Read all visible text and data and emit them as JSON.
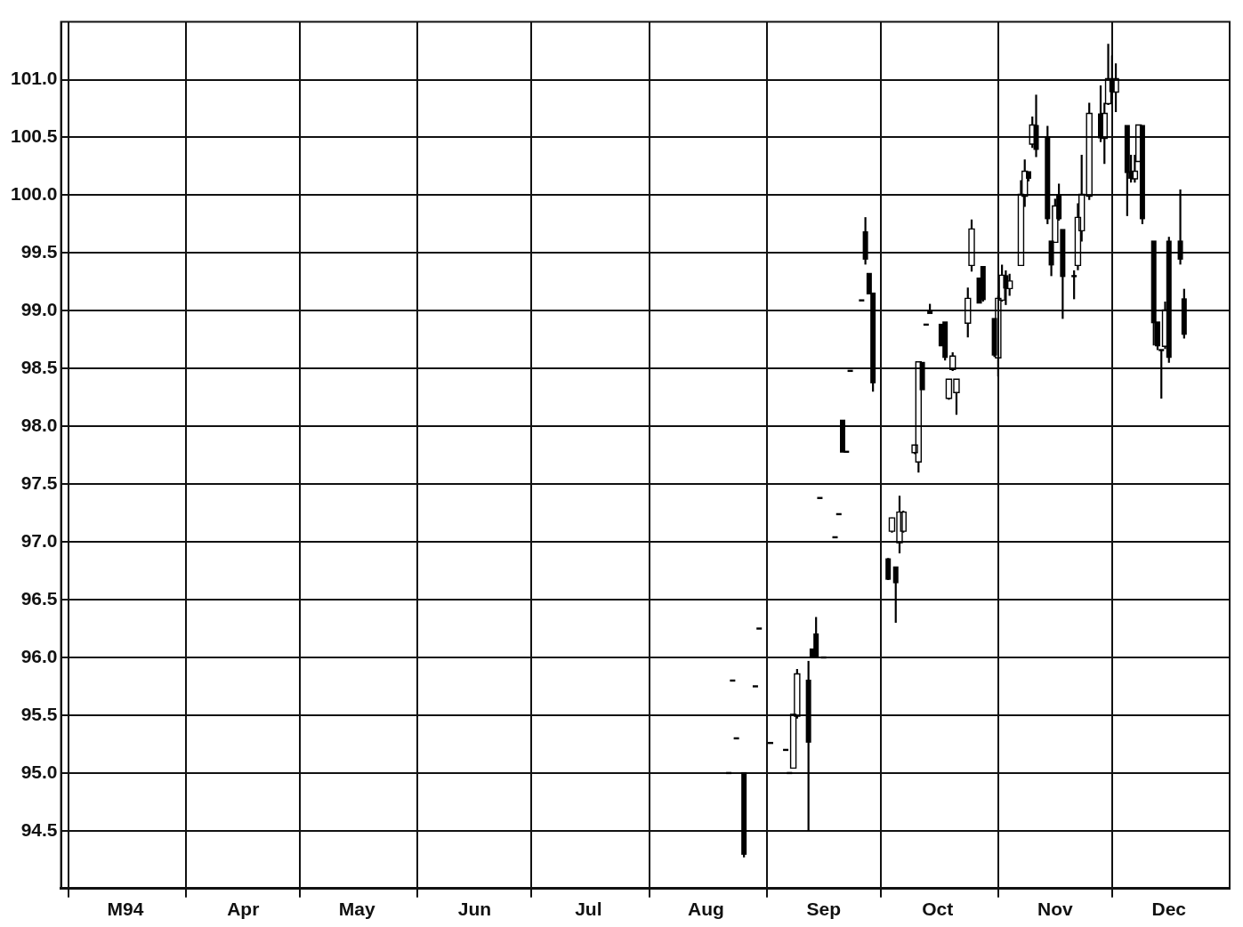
{
  "chart_data": {
    "type": "candlestick",
    "color": "#000000",
    "grid": true,
    "xlim": [
      "1994-02-27",
      "1995-01-01"
    ],
    "xticks": [
      {
        "value": "1994-03-01",
        "label": null
      },
      {
        "value": "1994-03-16",
        "label": "M94"
      },
      {
        "value": "1994-04-01",
        "label": null
      },
      {
        "value": "1994-04-16",
        "label": "Apr"
      },
      {
        "value": "1994-05-01",
        "label": null
      },
      {
        "value": "1994-05-16",
        "label": "May"
      },
      {
        "value": "1994-06-01",
        "label": null
      },
      {
        "value": "1994-06-16",
        "label": "Jun"
      },
      {
        "value": "1994-07-01",
        "label": null
      },
      {
        "value": "1994-07-16",
        "label": "Jul"
      },
      {
        "value": "1994-08-01",
        "label": null
      },
      {
        "value": "1994-08-16",
        "label": "Aug"
      },
      {
        "value": "1994-09-01",
        "label": null
      },
      {
        "value": "1994-09-16",
        "label": "Sep"
      },
      {
        "value": "1994-10-01",
        "label": null
      },
      {
        "value": "1994-10-16",
        "label": "Oct"
      },
      {
        "value": "1994-11-01",
        "label": null
      },
      {
        "value": "1994-11-16",
        "label": "Nov"
      },
      {
        "value": "1994-12-01",
        "label": null
      },
      {
        "value": "1994-12-16",
        "label": "Dec"
      }
    ],
    "ylim": [
      94.0,
      101.5
    ],
    "yticks": [
      94.5,
      {
        "value": 95,
        "label": "95.0"
      },
      95.5,
      {
        "value": 96,
        "label": "96.0"
      },
      96.5,
      {
        "value": 97,
        "label": "97.0"
      },
      97.5,
      {
        "value": 98,
        "label": "98.0"
      },
      98.5,
      {
        "value": 99,
        "label": "99.0"
      },
      99.5,
      {
        "value": 100,
        "label": "100.0"
      },
      100.5,
      {
        "value": 101,
        "label": "101.0"
      }
    ],
    "x": [
      "1994-08-22",
      "1994-08-23",
      "1994-08-24",
      "1994-08-26",
      "1994-08-29",
      "1994-08-30",
      "1994-09-02",
      "1994-09-06",
      "1994-09-07",
      "1994-09-08",
      "1994-09-09",
      "1994-09-12",
      "1994-09-13",
      "1994-09-14",
      "1994-09-15",
      "1994-09-16",
      "1994-09-19",
      "1994-09-20",
      "1994-09-21",
      "1994-09-22",
      "1994-09-23",
      "1994-09-26",
      "1994-09-27",
      "1994-09-28",
      "1994-09-29",
      "1994-10-03",
      "1994-10-04",
      "1994-10-05",
      "1994-10-06",
      "1994-10-07",
      "1994-10-10",
      "1994-10-11",
      "1994-10-12",
      "1994-10-13",
      "1994-10-14",
      "1994-10-17",
      "1994-10-18",
      "1994-10-19",
      "1994-10-20",
      "1994-10-21",
      "1994-10-24",
      "1994-10-25",
      "1994-10-27",
      "1994-10-28",
      "1994-10-31",
      "1994-11-01",
      "1994-11-02",
      "1994-11-03",
      "1994-11-04",
      "1994-11-07",
      "1994-11-08",
      "1994-11-09",
      "1994-11-10",
      "1994-11-11",
      "1994-11-14",
      "1994-11-15",
      "1994-11-16",
      "1994-11-17",
      "1994-11-18",
      "1994-11-21",
      "1994-11-22",
      "1994-11-23",
      "1994-11-25",
      "1994-11-28",
      "1994-11-29",
      "1994-11-30",
      "1994-12-01",
      "1994-12-02",
      "1994-12-05",
      "1994-12-06",
      "1994-12-07",
      "1994-12-08",
      "1994-12-09",
      "1994-12-12",
      "1994-12-13",
      "1994-12-14",
      "1994-12-15",
      "1994-12-16",
      "1994-12-19",
      "1994-12-20"
    ],
    "ohlc": [
      [
        95.0,
        95.0,
        95.0,
        95.0
      ],
      [
        95.8,
        95.8,
        95.8,
        95.8
      ],
      [
        95.3,
        95.3,
        95.3,
        95.3
      ],
      [
        95.0,
        95.0,
        94.27,
        94.3
      ],
      [
        95.75,
        95.75,
        95.75,
        95.75
      ],
      [
        96.25,
        96.25,
        96.25,
        96.25
      ],
      [
        95.26,
        95.26,
        95.26,
        95.26
      ],
      [
        95.2,
        95.2,
        95.2,
        95.2
      ],
      [
        95.0,
        95.0,
        95.0,
        95.0
      ],
      [
        95.05,
        95.51,
        95.05,
        95.5
      ],
      [
        95.5,
        95.9,
        95.47,
        95.85
      ],
      [
        95.8,
        95.97,
        94.5,
        95.27
      ],
      [
        96.07,
        96.07,
        96.0,
        96.0
      ],
      [
        96.2,
        96.35,
        96.0,
        96.0
      ],
      [
        97.38,
        97.38,
        97.38,
        97.38
      ],
      [
        96.0,
        96.0,
        96.0,
        96.0
      ],
      [
        97.04,
        97.04,
        97.04,
        97.04
      ],
      [
        97.24,
        97.24,
        97.24,
        97.24
      ],
      [
        98.05,
        98.05,
        97.78,
        97.78
      ],
      [
        97.78,
        97.78,
        97.78,
        97.78
      ],
      [
        98.48,
        98.48,
        98.48,
        98.48
      ],
      [
        99.09,
        99.09,
        99.09,
        99.09
      ],
      [
        99.68,
        99.81,
        99.4,
        99.45
      ],
      [
        99.32,
        99.32,
        99.15,
        99.15
      ],
      [
        99.15,
        99.15,
        98.3,
        98.38
      ],
      [
        96.85,
        96.86,
        96.67,
        96.68
      ],
      [
        97.1,
        97.21,
        97.08,
        97.2
      ],
      [
        96.78,
        96.78,
        96.3,
        96.65
      ],
      [
        97.0,
        97.4,
        96.9,
        97.25
      ],
      [
        97.1,
        97.27,
        97.08,
        97.25
      ],
      [
        97.78,
        97.83,
        97.76,
        97.83
      ],
      [
        97.7,
        98.55,
        97.6,
        98.55
      ],
      [
        98.55,
        98.55,
        98.32,
        98.32
      ],
      [
        98.88,
        98.88,
        98.88,
        98.88
      ],
      [
        99.0,
        99.06,
        98.98,
        98.98
      ],
      [
        98.88,
        98.88,
        98.7,
        98.7
      ],
      [
        98.9,
        98.9,
        98.57,
        98.6
      ],
      [
        98.25,
        98.4,
        98.23,
        98.4
      ],
      [
        98.5,
        98.64,
        98.48,
        98.6
      ],
      [
        98.3,
        98.4,
        98.1,
        98.4
      ],
      [
        98.9,
        99.2,
        98.77,
        99.1
      ],
      [
        99.4,
        99.79,
        99.34,
        99.7
      ],
      [
        99.28,
        99.28,
        99.07,
        99.07
      ],
      [
        99.38,
        99.38,
        99.08,
        99.1
      ],
      [
        98.93,
        98.93,
        98.6,
        98.62
      ],
      [
        98.6,
        99.13,
        98.43,
        99.1
      ],
      [
        99.1,
        99.4,
        99.08,
        99.3
      ],
      [
        99.3,
        99.35,
        99.05,
        99.2
      ],
      [
        99.2,
        99.32,
        99.13,
        99.25
      ],
      [
        99.4,
        100.13,
        99.4,
        100.0
      ],
      [
        100.0,
        100.31,
        99.9,
        100.2
      ],
      [
        100.2,
        100.2,
        100.12,
        100.15
      ],
      [
        100.45,
        100.68,
        100.41,
        100.6
      ],
      [
        100.6,
        100.87,
        100.33,
        100.4
      ],
      [
        100.5,
        100.6,
        99.75,
        99.8
      ],
      [
        99.6,
        99.6,
        99.3,
        99.4
      ],
      [
        99.6,
        99.97,
        99.6,
        99.9
      ],
      [
        100.0,
        100.1,
        99.78,
        99.8
      ],
      [
        99.7,
        99.7,
        98.93,
        99.3
      ],
      [
        99.3,
        99.35,
        99.1,
        99.3
      ],
      [
        99.4,
        99.93,
        99.35,
        99.8
      ],
      [
        99.7,
        100.35,
        99.6,
        100.0
      ],
      [
        100.0,
        100.8,
        99.96,
        100.7
      ],
      [
        100.7,
        100.95,
        100.46,
        100.5
      ],
      [
        100.5,
        100.8,
        100.27,
        100.7
      ],
      [
        100.8,
        101.31,
        100.78,
        101.0
      ],
      [
        101.0,
        101.21,
        100.83,
        100.9
      ],
      [
        100.9,
        101.14,
        100.72,
        101.0
      ],
      [
        100.6,
        100.6,
        99.82,
        100.2
      ],
      [
        100.2,
        100.35,
        100.11,
        100.15
      ],
      [
        100.15,
        100.35,
        100.11,
        100.2
      ],
      [
        100.3,
        100.6,
        100.3,
        100.6
      ],
      [
        100.6,
        100.6,
        99.75,
        99.8
      ],
      [
        99.6,
        99.6,
        98.7,
        98.9
      ],
      [
        98.9,
        98.9,
        98.66,
        98.7
      ],
      [
        98.66,
        98.66,
        98.24,
        98.66
      ],
      [
        98.7,
        99.08,
        98.67,
        99.0
      ],
      [
        99.6,
        99.64,
        98.55,
        98.6
      ],
      [
        99.6,
        100.05,
        99.4,
        99.45
      ],
      [
        99.1,
        99.19,
        98.76,
        98.8
      ]
    ]
  }
}
